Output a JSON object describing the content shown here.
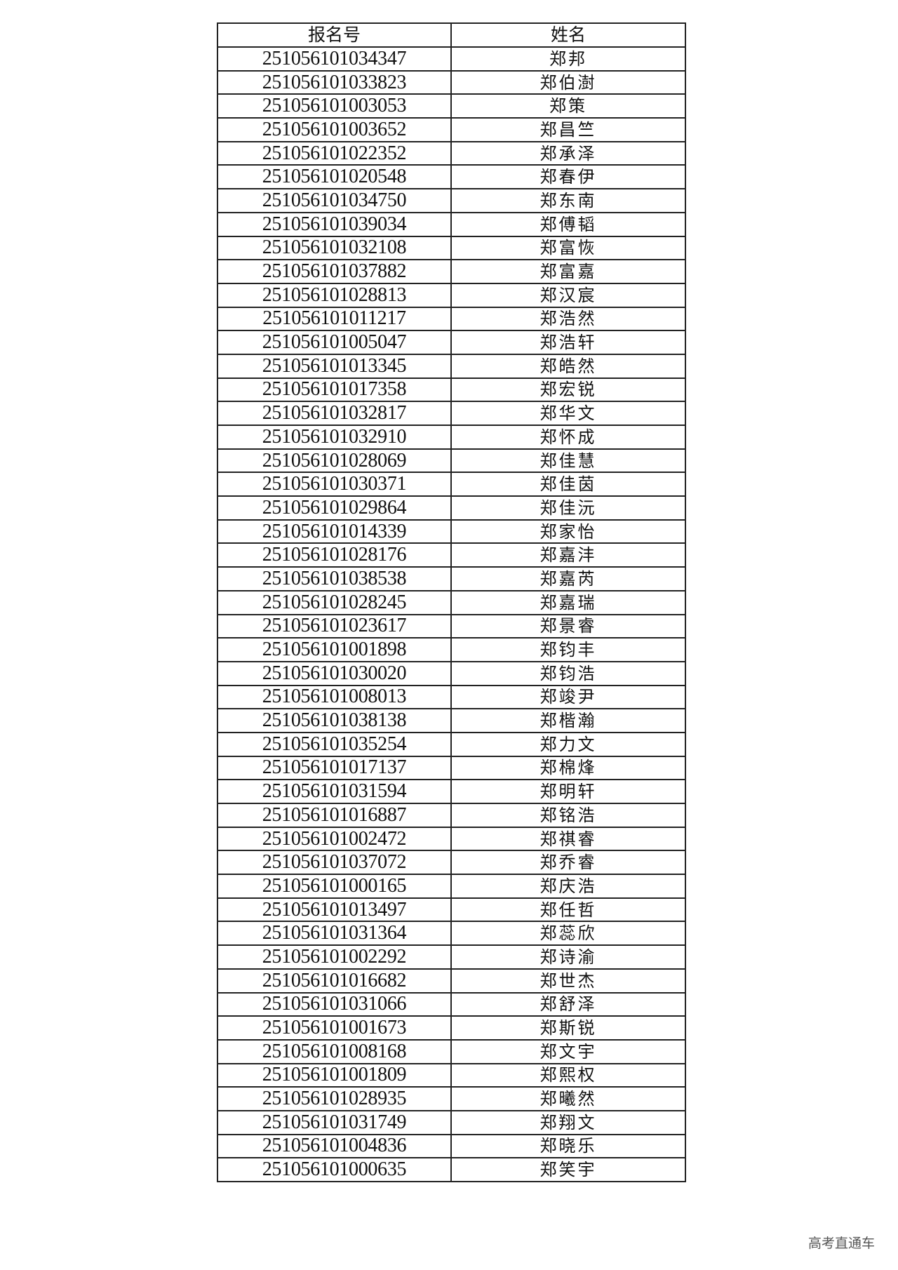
{
  "table": {
    "headers": [
      "报名号",
      "姓名"
    ],
    "rows": [
      [
        "251056101034347",
        "郑邦"
      ],
      [
        "251056101033823",
        "郑伯澍"
      ],
      [
        "251056101003053",
        "郑策"
      ],
      [
        "251056101003652",
        "郑昌竺"
      ],
      [
        "251056101022352",
        "郑承泽"
      ],
      [
        "251056101020548",
        "郑春伊"
      ],
      [
        "251056101034750",
        "郑东南"
      ],
      [
        "251056101039034",
        "郑傅韬"
      ],
      [
        "251056101032108",
        "郑富恢"
      ],
      [
        "251056101037882",
        "郑富嘉"
      ],
      [
        "251056101028813",
        "郑汉宸"
      ],
      [
        "251056101011217",
        "郑浩然"
      ],
      [
        "251056101005047",
        "郑浩轩"
      ],
      [
        "251056101013345",
        "郑皓然"
      ],
      [
        "251056101017358",
        "郑宏锐"
      ],
      [
        "251056101032817",
        "郑华文"
      ],
      [
        "251056101032910",
        "郑怀成"
      ],
      [
        "251056101028069",
        "郑佳慧"
      ],
      [
        "251056101030371",
        "郑佳茵"
      ],
      [
        "251056101029864",
        "郑佳沅"
      ],
      [
        "251056101014339",
        "郑家怡"
      ],
      [
        "251056101028176",
        "郑嘉沣"
      ],
      [
        "251056101038538",
        "郑嘉芮"
      ],
      [
        "251056101028245",
        "郑嘉瑞"
      ],
      [
        "251056101023617",
        "郑景睿"
      ],
      [
        "251056101001898",
        "郑钧丰"
      ],
      [
        "251056101030020",
        "郑钧浩"
      ],
      [
        "251056101008013",
        "郑竣尹"
      ],
      [
        "251056101038138",
        "郑楷瀚"
      ],
      [
        "251056101035254",
        "郑力文"
      ],
      [
        "251056101017137",
        "郑棉烽"
      ],
      [
        "251056101031594",
        "郑明轩"
      ],
      [
        "251056101016887",
        "郑铭浩"
      ],
      [
        "251056101002472",
        "郑祺睿"
      ],
      [
        "251056101037072",
        "郑乔睿"
      ],
      [
        "251056101000165",
        "郑庆浩"
      ],
      [
        "251056101013497",
        "郑任哲"
      ],
      [
        "251056101031364",
        "郑蕊欣"
      ],
      [
        "251056101002292",
        "郑诗渝"
      ],
      [
        "251056101016682",
        "郑世杰"
      ],
      [
        "251056101031066",
        "郑舒泽"
      ],
      [
        "251056101001673",
        "郑斯锐"
      ],
      [
        "251056101008168",
        "郑文宇"
      ],
      [
        "251056101001809",
        "郑熙权"
      ],
      [
        "251056101028935",
        "郑曦然"
      ],
      [
        "251056101031749",
        "郑翔文"
      ],
      [
        "251056101004836",
        "郑晓乐"
      ],
      [
        "251056101000635",
        "郑笑宇"
      ]
    ]
  },
  "watermark": "高考直通车"
}
